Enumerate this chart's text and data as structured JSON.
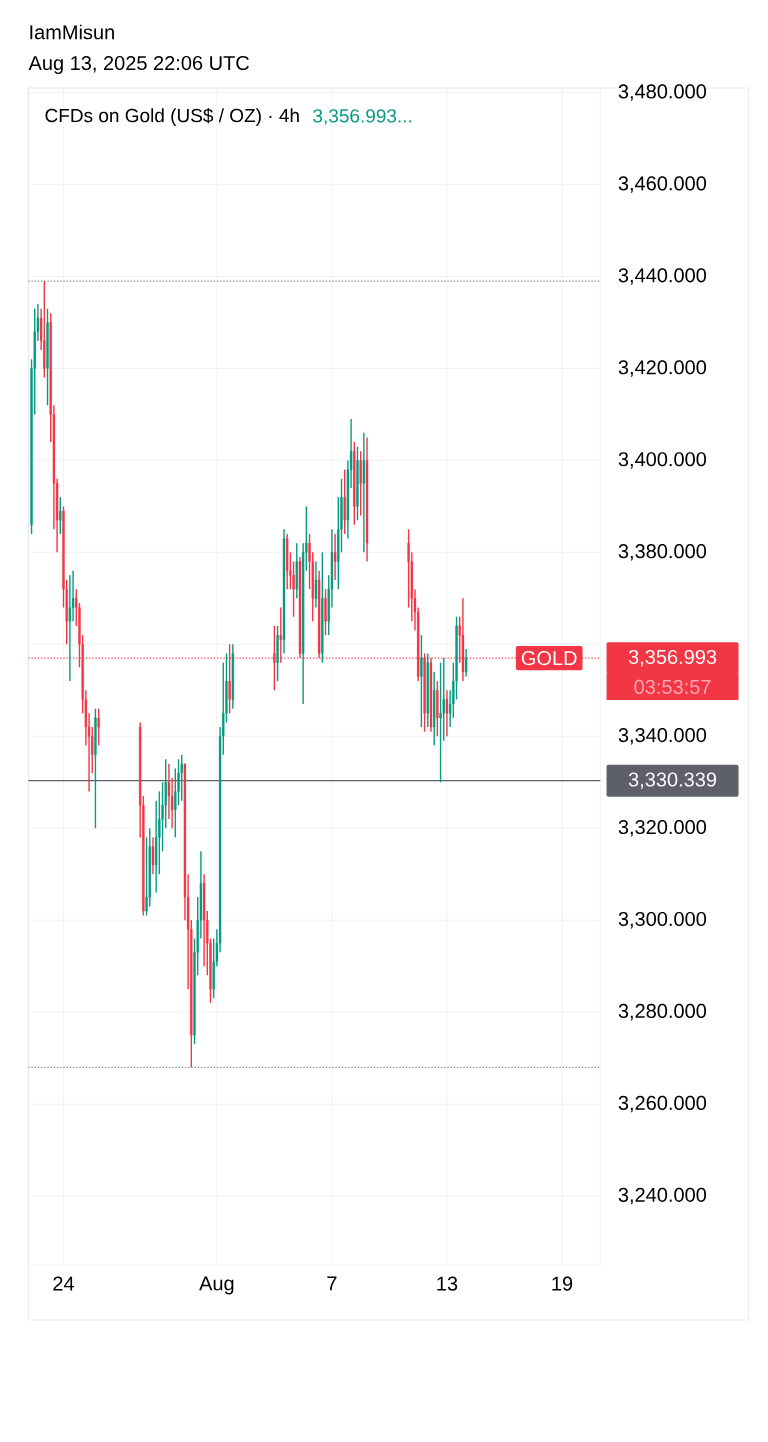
{
  "chart_data": {
    "type": "candlestick",
    "title": "CFDs on Gold (US$ / OZ) · 4h",
    "subtitle": "3,356.993...",
    "annotations": [
      "IamMisun",
      "Aug 13, 2025 22:06 UTC",
      {
        "text": "GOLD",
        "x": "2025-08-18T08:00",
        "y": 3356.993
      },
      "03:53:57"
    ],
    "x": [
      "2025-07-22T08:00",
      "2025-07-22T12:00",
      "2025-07-22T16:00",
      "2025-07-22T20:00",
      "2025-07-23T00:00",
      "2025-07-23T04:00",
      "2025-07-23T08:00",
      "2025-07-23T12:00",
      "2025-07-23T16:00",
      "2025-07-23T20:00",
      "2025-07-24T00:00",
      "2025-07-24T04:00",
      "2025-07-24T08:00",
      "2025-07-24T12:00",
      "2025-07-24T16:00",
      "2025-07-24T20:00",
      "2025-07-25T00:00",
      "2025-07-25T04:00",
      "2025-07-25T08:00",
      "2025-07-25T12:00",
      "2025-07-25T16:00",
      "2025-07-25T20:00",
      "2025-07-28T00:00",
      "2025-07-28T04:00",
      "2025-07-28T08:00",
      "2025-07-28T12:00",
      "2025-07-28T16:00",
      "2025-07-28T20:00",
      "2025-07-29T00:00",
      "2025-07-29T04:00",
      "2025-07-29T08:00",
      "2025-07-29T12:00",
      "2025-07-29T16:00",
      "2025-07-29T20:00",
      "2025-07-30T00:00",
      "2025-07-30T04:00",
      "2025-07-30T08:00",
      "2025-07-30T12:00",
      "2025-07-30T16:00",
      "2025-07-30T20:00",
      "2025-07-31T00:00",
      "2025-07-31T04:00",
      "2025-07-31T08:00",
      "2025-07-31T12:00",
      "2025-07-31T16:00",
      "2025-07-31T20:00",
      "2025-08-01T00:00",
      "2025-08-01T04:00",
      "2025-08-01T08:00",
      "2025-08-01T12:00",
      "2025-08-01T16:00",
      "2025-08-01T20:00",
      "2025-08-04T00:00",
      "2025-08-04T04:00",
      "2025-08-04T08:00",
      "2025-08-04T12:00",
      "2025-08-04T16:00",
      "2025-08-04T20:00",
      "2025-08-05T00:00",
      "2025-08-05T04:00",
      "2025-08-05T08:00",
      "2025-08-05T12:00",
      "2025-08-05T16:00",
      "2025-08-05T20:00",
      "2025-08-06T00:00",
      "2025-08-06T04:00",
      "2025-08-06T08:00",
      "2025-08-06T12:00",
      "2025-08-06T16:00",
      "2025-08-06T20:00",
      "2025-08-07T00:00",
      "2025-08-07T04:00",
      "2025-08-07T08:00",
      "2025-08-07T12:00",
      "2025-08-07T16:00",
      "2025-08-07T20:00",
      "2025-08-08T00:00",
      "2025-08-08T04:00",
      "2025-08-08T08:00",
      "2025-08-08T12:00",
      "2025-08-08T16:00",
      "2025-08-08T20:00",
      "2025-08-11T00:00",
      "2025-08-11T04:00",
      "2025-08-11T08:00",
      "2025-08-11T12:00",
      "2025-08-11T16:00",
      "2025-08-11T20:00",
      "2025-08-12T00:00",
      "2025-08-12T04:00",
      "2025-08-12T08:00",
      "2025-08-12T12:00",
      "2025-08-12T16:00",
      "2025-08-12T20:00",
      "2025-08-13T00:00",
      "2025-08-13T04:00",
      "2025-08-13T08:00",
      "2025-08-13T12:00",
      "2025-08-13T16:00",
      "2025-08-13T20:00",
      "2025-08-14T00:00"
    ],
    "ohlc": [
      [
        3386,
        3422,
        3384,
        3420
      ],
      [
        3420,
        3433,
        3410,
        3428
      ],
      [
        3428,
        3434,
        3426,
        3431
      ],
      [
        3431,
        3433,
        3424,
        3426
      ],
      [
        3426,
        3439,
        3418,
        3420
      ],
      [
        3420,
        3433,
        3412,
        3430
      ],
      [
        3430,
        3432,
        3404,
        3410
      ],
      [
        3410,
        3412,
        3385,
        3395
      ],
      [
        3395,
        3396,
        3380,
        3387
      ],
      [
        3387,
        3392,
        3384,
        3389
      ],
      [
        3389,
        3390,
        3368,
        3372
      ],
      [
        3372,
        3374,
        3360,
        3365
      ],
      [
        3365,
        3375,
        3352,
        3368
      ],
      [
        3368,
        3376,
        3365,
        3370
      ],
      [
        3370,
        3372,
        3364,
        3368
      ],
      [
        3368,
        3369,
        3355,
        3360
      ],
      [
        3360,
        3362,
        3345,
        3348
      ],
      [
        3348,
        3350,
        3338,
        3342
      ],
      [
        3342,
        3345,
        3328,
        3340
      ],
      [
        3340,
        3342,
        3332,
        3336
      ],
      [
        3336,
        3346,
        3320,
        3344
      ],
      [
        3344,
        3346,
        3338,
        3342
      ],
      [
        3342,
        3343,
        3318,
        3325
      ],
      [
        3325,
        3327,
        3301,
        3302
      ],
      [
        3302,
        3318,
        3301,
        3305
      ],
      [
        3305,
        3320,
        3303,
        3316
      ],
      [
        3316,
        3318,
        3310,
        3312
      ],
      [
        3312,
        3326,
        3306,
        3318
      ],
      [
        3318,
        3328,
        3310,
        3322
      ],
      [
        3322,
        3330,
        3315,
        3325
      ],
      [
        3325,
        3335,
        3320,
        3330
      ],
      [
        3330,
        3334,
        3322,
        3327
      ],
      [
        3327,
        3331,
        3320,
        3324
      ],
      [
        3324,
        3333,
        3318,
        3328
      ],
      [
        3328,
        3335,
        3325,
        3332
      ],
      [
        3332,
        3336,
        3326,
        3334
      ],
      [
        3334,
        3334,
        3300,
        3305
      ],
      [
        3305,
        3310,
        3285,
        3298
      ],
      [
        3298,
        3300,
        3268,
        3275
      ],
      [
        3275,
        3296,
        3273,
        3293
      ],
      [
        3293,
        3305,
        3288,
        3300
      ],
      [
        3300,
        3315,
        3296,
        3308
      ],
      [
        3308,
        3310,
        3290,
        3300
      ],
      [
        3300,
        3302,
        3288,
        3295
      ],
      [
        3295,
        3296,
        3282,
        3285
      ],
      [
        3285,
        3296,
        3283,
        3291
      ],
      [
        3291,
        3298,
        3290,
        3295
      ],
      [
        3295,
        3342,
        3293,
        3340
      ],
      [
        3340,
        3356,
        3336,
        3345
      ],
      [
        3345,
        3358,
        3343,
        3352
      ],
      [
        3352,
        3360,
        3345,
        3348
      ],
      [
        3348,
        3360,
        3346,
        3358
      ],
      [
        3358,
        3364,
        3350,
        3356
      ],
      [
        3356,
        3364,
        3352,
        3362
      ],
      [
        3362,
        3368,
        3356,
        3361
      ],
      [
        3361,
        3385,
        3358,
        3383
      ],
      [
        3383,
        3384,
        3372,
        3376
      ],
      [
        3376,
        3380,
        3372,
        3375
      ],
      [
        3375,
        3378,
        3366,
        3372
      ],
      [
        3372,
        3382,
        3370,
        3378
      ],
      [
        3378,
        3379,
        3357,
        3358
      ],
      [
        3358,
        3382,
        3347,
        3380
      ],
      [
        3380,
        3390,
        3376,
        3382
      ],
      [
        3382,
        3384,
        3372,
        3378
      ],
      [
        3378,
        3380,
        3365,
        3370
      ],
      [
        3370,
        3378,
        3368,
        3374
      ],
      [
        3374,
        3376,
        3357,
        3358
      ],
      [
        3358,
        3380,
        3356,
        3370
      ],
      [
        3370,
        3372,
        3362,
        3365
      ],
      [
        3365,
        3375,
        3362,
        3372
      ],
      [
        3372,
        3385,
        3368,
        3380
      ],
      [
        3380,
        3384,
        3374,
        3378
      ],
      [
        3378,
        3392,
        3372,
        3385
      ],
      [
        3385,
        3396,
        3380,
        3392
      ],
      [
        3392,
        3398,
        3384,
        3387
      ],
      [
        3387,
        3400,
        3383,
        3398
      ],
      [
        3398,
        3409,
        3394,
        3402
      ],
      [
        3402,
        3404,
        3386,
        3390
      ],
      [
        3390,
        3403,
        3387,
        3400
      ],
      [
        3400,
        3402,
        3388,
        3395
      ],
      [
        3395,
        3406,
        3380,
        3400
      ],
      [
        3400,
        3405,
        3378,
        3382
      ],
      [
        3382,
        3385,
        3368,
        3378
      ],
      [
        3378,
        3380,
        3365,
        3370
      ],
      [
        3370,
        3372,
        3363,
        3367
      ],
      [
        3367,
        3368,
        3352,
        3353
      ],
      [
        3353,
        3362,
        3342,
        3357
      ],
      [
        3357,
        3358,
        3341,
        3345
      ],
      [
        3345,
        3358,
        3342,
        3356
      ],
      [
        3356,
        3357,
        3341,
        3342
      ],
      [
        3342,
        3354,
        3338,
        3350
      ],
      [
        3350,
        3352,
        3340,
        3344
      ],
      [
        3344,
        3356,
        3330,
        3345
      ],
      [
        3345,
        3357,
        3339,
        3348
      ],
      [
        3348,
        3350,
        3340,
        3345
      ],
      [
        3345,
        3350,
        3342,
        3347
      ],
      [
        3347,
        3356,
        3344,
        3352
      ],
      [
        3352,
        3366,
        3348,
        3364
      ],
      [
        3364,
        3366,
        3356,
        3362
      ],
      [
        3362,
        3370,
        3352,
        3354
      ],
      [
        3354,
        3359,
        3353,
        3357
      ]
    ],
    "colors": [
      "#089981",
      "#089981",
      "#089981",
      "#f23645",
      "#f23645",
      "#089981",
      "#f23645",
      "#f23645",
      "#f23645",
      "#089981",
      "#f23645",
      "#f23645",
      "#089981",
      "#089981",
      "#f23645",
      "#f23645",
      "#f23645",
      "#f23645",
      "#f23645",
      "#f23645",
      "#089981",
      "#f23645",
      "#f23645",
      "#f23645",
      "#089981",
      "#089981",
      "#f23645",
      "#089981",
      "#089981",
      "#089981",
      "#089981",
      "#f23645",
      "#f23645",
      "#089981",
      "#089981",
      "#089981",
      "#f23645",
      "#f23645",
      "#f23645",
      "#089981",
      "#089981",
      "#089981",
      "#f23645",
      "#f23645",
      "#f23645",
      "#089981",
      "#089981",
      "#089981",
      "#089981",
      "#089981",
      "#f23645",
      "#089981",
      "#f23645",
      "#089981",
      "#f23645",
      "#089981",
      "#f23645",
      "#f23645",
      "#f23645",
      "#089981",
      "#f23645",
      "#089981",
      "#089981",
      "#f23645",
      "#f23645",
      "#089981",
      "#f23645",
      "#089981",
      "#f23645",
      "#089981",
      "#089981",
      "#f23645",
      "#089981",
      "#089981",
      "#f23645",
      "#089981",
      "#089981",
      "#f23645",
      "#089981",
      "#f23645",
      "#089981",
      "#f23645",
      "#f23645",
      "#f23645",
      "#f23645",
      "#f23645",
      "#089981",
      "#f23645",
      "#089981",
      "#f23645",
      "#089981",
      "#f23645",
      "#089981",
      "#089981",
      "#f23645",
      "#089981",
      "#089981",
      "#089981",
      "#f23645",
      "#f23645",
      "#089981"
    ],
    "xlim": [
      "2025-07-22T04:00",
      "2025-08-21T00:00"
    ],
    "xticks": [
      {
        "value": "2025-07-24",
        "label": "24"
      },
      {
        "value": "2025-08-01",
        "label": "Aug"
      },
      {
        "value": "2025-08-07",
        "label": "7"
      },
      {
        "value": "2025-08-13",
        "label": "13"
      },
      {
        "value": "2025-08-19",
        "label": "19"
      }
    ],
    "ylim": [
      3225,
      3481
    ],
    "yticks": [
      {
        "value": 3240,
        "label": "3,240.000"
      },
      {
        "value": 3260,
        "label": "3,260.000"
      },
      {
        "value": 3280,
        "label": "3,280.000"
      },
      {
        "value": 3300,
        "label": "3,300.000"
      },
      {
        "value": 3320,
        "label": "3,320.000"
      },
      {
        "value": 3340,
        "label": "3,340.000"
      },
      {
        "value": 3360,
        "label": null
      },
      {
        "value": 3380,
        "label": "3,380.000"
      },
      {
        "value": 3400,
        "label": "3,400.000"
      },
      {
        "value": 3420,
        "label": "3,420.000"
      },
      {
        "value": 3440,
        "label": "3,440.000"
      },
      {
        "value": 3460,
        "label": "3,460.000"
      },
      {
        "value": 3480,
        "label": "3,480.000"
      }
    ],
    "ref_lines": [
      {
        "axis": "y",
        "value": 3439,
        "color": "#787b86",
        "line_style": "dotted"
      },
      {
        "axis": "y",
        "value": 3268,
        "color": "#787b86",
        "line_style": "dotted"
      },
      {
        "axis": "y",
        "value": 3356.993,
        "label": "3,356.993",
        "color": "#f23645",
        "line_style": "dotted"
      },
      {
        "axis": "y",
        "value": 3330.339,
        "label": "3,330.339",
        "color": "#5d606b",
        "line_style": "solid"
      }
    ],
    "grid": true
  }
}
